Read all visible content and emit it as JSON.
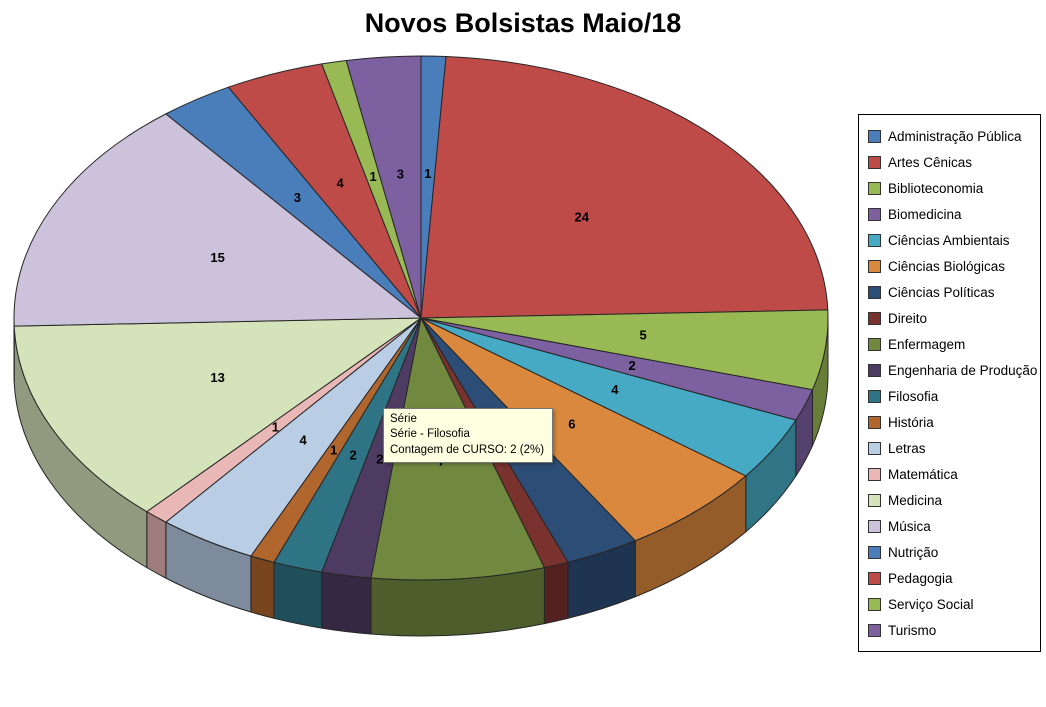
{
  "title": "Novos Bolsistas Maio/18",
  "tooltip": {
    "lines": {
      "0": "Série",
      "1": "Série - Filosofia",
      "2": "Contagem de CURSO: 2 (2%)"
    }
  },
  "chart_data": {
    "type": "pie",
    "effect": "3d",
    "title": "Novos Bolsistas Maio/18",
    "legend_position": "right",
    "data_labels": "value",
    "total": 102,
    "categories": [
      "Administração Pública",
      "Artes Cênicas",
      "Biblioteconomia",
      "Biomedicina",
      "Ciências Ambientais",
      "Ciências Biológicas",
      "Ciências Políticas",
      "Direito",
      "Enfermagem",
      "Engenharia de Produção",
      "Filosofia",
      "História",
      "Letras",
      "Matemática",
      "Medicina",
      "Música",
      "Nutrição",
      "Pedagogia",
      "Serviço Social",
      "Turismo"
    ],
    "values": [
      1,
      24,
      5,
      2,
      4,
      6,
      3,
      1,
      7,
      2,
      2,
      1,
      4,
      1,
      13,
      15,
      3,
      4,
      1,
      3
    ],
    "colors": [
      "#4A7EBB",
      "#BE4B48",
      "#98B954",
      "#7D60A0",
      "#46AAC5",
      "#D9883D",
      "#2C4D75",
      "#7A322F",
      "#71893F",
      "#4D3B62",
      "#2E7485",
      "#B0662D",
      "#B9CDE5",
      "#E8B7B6",
      "#D5E3BB",
      "#CCC2DB",
      "#4A7EBB",
      "#BE4B48",
      "#98B954",
      "#7D60A0"
    ],
    "highlighted_category": "Filosofia",
    "highlighted_value": 2,
    "highlighted_percent": "2%"
  }
}
